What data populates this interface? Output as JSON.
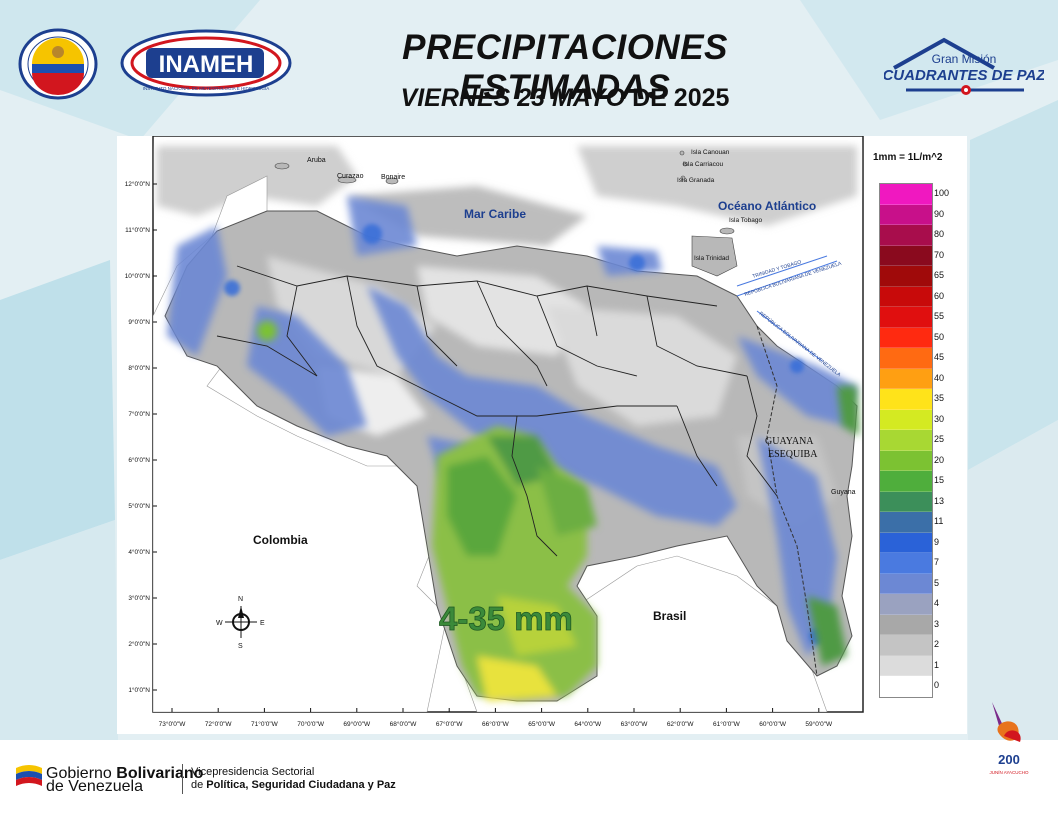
{
  "header": {
    "title": "PRECIPITACIONES ESTIMADAS",
    "date_prefix": "VIERNES 23 MAYO",
    "date_suffix": " DE 2025"
  },
  "logos": {
    "inameh": "INAMEH",
    "inameh_sub": "INSTITUTO NACIONAL DE METEOROLOGÍA E HIDROLOGÍA",
    "gran_mision_1": "Gran Misión",
    "gran_mision_2": "CUADRANTES DE PAZ",
    "ministerio_ring": "Ministerio del Poder Popular para Relaciones Interiores, Justicia y Paz",
    "bicentenario_1": "200",
    "bicentenario_2": "JUNÍN AYACUCHO"
  },
  "map": {
    "places": {
      "aruba": "Aruba",
      "curazao": "Curazao",
      "bonaire": "Bonaire",
      "canouan": "Isla Canouan",
      "carriacou": "Isla Carriacou",
      "granada": "Isla Granada",
      "tobago": "Isla Tobago",
      "trinidad": "Isla Trinidad",
      "mar_caribe": "Mar Caribe",
      "oceano": "Océano Atlántico",
      "colombia": "Colombia",
      "brasil": "Brasil",
      "guayana_1": "GUAYANA",
      "guayana_2": "ESEQUIBA",
      "guyana": "Guyana",
      "border_1": "TRINIDAD Y TOBAGO",
      "border_2": "REPÚBLICA BOLIVARIANA DE VENEZUELA",
      "border_3": "REPÚBLICA BOLIVARIANA DE VENEZUELA"
    },
    "big_label": "4-35 mm",
    "lat_ticks": [
      "12°0'0\"N",
      "11°0'0\"N",
      "10°0'0\"N",
      "9°0'0\"N",
      "8°0'0\"N",
      "7°0'0\"N",
      "6°0'0\"N",
      "5°0'0\"N",
      "4°0'0\"N",
      "3°0'0\"N",
      "2°0'0\"N",
      "1°0'0\"N"
    ],
    "lon_ticks": [
      "73°0'0\"W",
      "72°0'0\"W",
      "71°0'0\"W",
      "70°0'0\"W",
      "69°0'0\"W",
      "68°0'0\"W",
      "67°0'0\"W",
      "66°0'0\"W",
      "65°0'0\"W",
      "64°0'0\"W",
      "63°0'0\"W",
      "62°0'0\"W",
      "61°0'0\"W",
      "60°0'0\"W",
      "59°0'0\"W"
    ],
    "compass": {
      "n": "N",
      "s": "S",
      "e": "E",
      "w": "W"
    }
  },
  "legend": {
    "unit": "1mm = 1L/m^2",
    "items": [
      {
        "label": "100",
        "color": "#f018c0"
      },
      {
        "label": "90",
        "color": "#c8108a"
      },
      {
        "label": "80",
        "color": "#a80d4c"
      },
      {
        "label": "70",
        "color": "#8a0a1e"
      },
      {
        "label": "65",
        "color": "#a00a0a"
      },
      {
        "label": "60",
        "color": "#c80a0a"
      },
      {
        "label": "55",
        "color": "#e00f0f"
      },
      {
        "label": "50",
        "color": "#ff2a10"
      },
      {
        "label": "45",
        "color": "#ff6a12"
      },
      {
        "label": "40",
        "color": "#ff9f12"
      },
      {
        "label": "35",
        "color": "#ffe31a"
      },
      {
        "label": "30",
        "color": "#d4ea22"
      },
      {
        "label": "25",
        "color": "#a8d833"
      },
      {
        "label": "20",
        "color": "#7cc232"
      },
      {
        "label": "15",
        "color": "#4fae3c"
      },
      {
        "label": "13",
        "color": "#3c8f5a"
      },
      {
        "label": "11",
        "color": "#3b6fa8"
      },
      {
        "label": "9",
        "color": "#2a62d8"
      },
      {
        "label": "7",
        "color": "#4a7ae0"
      },
      {
        "label": "5",
        "color": "#6c88d4"
      },
      {
        "label": "4",
        "color": "#9aa2c0"
      },
      {
        "label": "3",
        "color": "#a8a8a8"
      },
      {
        "label": "2",
        "color": "#c4c4c4"
      },
      {
        "label": "1",
        "color": "#dcdcdc"
      },
      {
        "label": "0",
        "color": "#ffffff"
      }
    ]
  },
  "footer": {
    "gob_1_a": "Gobierno ",
    "gob_1_b": "Bolivariano",
    "gob_2": "de Venezuela",
    "vp_1": "Vicepresidencia Sectorial",
    "vp_2_a": "de ",
    "vp_2_b": "Política, Seguridad Ciudadana y Paz"
  }
}
